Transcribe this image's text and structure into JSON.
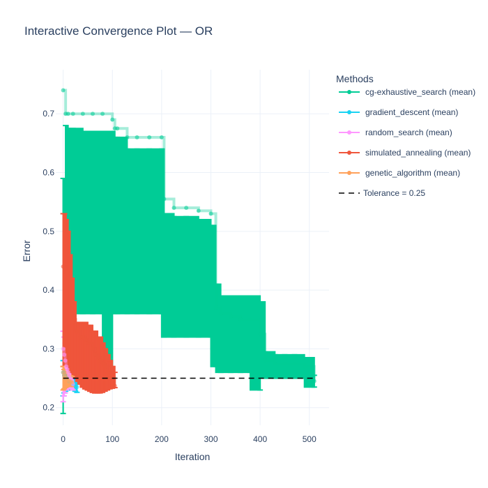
{
  "chart_data": {
    "type": "line",
    "title": "Interactive Convergence Plot — OR",
    "xlabel": "Iteration",
    "ylabel": "Error",
    "xlim": [
      -15,
      540
    ],
    "ylim": [
      0.17,
      0.775
    ],
    "x_ticks": [
      0,
      100,
      200,
      300,
      400,
      500
    ],
    "y_ticks": [
      0.2,
      0.3,
      0.4,
      0.5,
      0.6,
      0.7
    ],
    "grid": true,
    "legend_title": "Methods",
    "legend_position": "right",
    "tolerance": {
      "name": "Tolerance = 0.25",
      "value": 0.25,
      "color": "#000000",
      "dash": true
    },
    "series": [
      {
        "name": "cg-exhaustive_search (mean)",
        "color": "#00cc96",
        "x": [
          0,
          5,
          10,
          20,
          40,
          60,
          80,
          100,
          105,
          110,
          130,
          150,
          175,
          200,
          205,
          225,
          250,
          275,
          300,
          310,
          320,
          340,
          360,
          380,
          400,
          410,
          430,
          450,
          470,
          490,
          510
        ],
        "y": [
          0.74,
          0.7,
          0.7,
          0.7,
          0.7,
          0.7,
          0.7,
          0.69,
          0.675,
          0.675,
          0.66,
          0.66,
          0.66,
          0.66,
          0.555,
          0.54,
          0.54,
          0.535,
          0.53,
          0.37,
          0.36,
          0.355,
          0.35,
          0.35,
          0.325,
          0.28,
          0.275,
          0.275,
          0.275,
          0.27,
          0.245
        ],
        "upper": [
          0.59,
          0.68,
          0.675,
          0.675,
          0.67,
          0.67,
          0.67,
          0.67,
          0.66,
          0.66,
          0.64,
          0.64,
          0.64,
          0.64,
          0.53,
          0.525,
          0.525,
          0.52,
          0.51,
          0.41,
          0.39,
          0.39,
          0.39,
          0.39,
          0.38,
          0.295,
          0.29,
          0.29,
          0.29,
          0.285,
          0.255
        ],
        "lower": [
          0.19,
          0.3,
          0.35,
          0.36,
          0.36,
          0.36,
          0.36,
          0.26,
          0.36,
          0.36,
          0.36,
          0.36,
          0.36,
          0.36,
          0.32,
          0.32,
          0.32,
          0.32,
          0.32,
          0.27,
          0.26,
          0.26,
          0.26,
          0.26,
          0.23,
          0.25,
          0.25,
          0.25,
          0.25,
          0.25,
          0.235
        ]
      },
      {
        "name": "gradient_descent (mean)",
        "color": "#19d3f3",
        "x": [
          0,
          2,
          5,
          8,
          12,
          16,
          20,
          25,
          28
        ],
        "y": [
          0.26,
          0.255,
          0.25,
          0.25,
          0.245,
          0.245,
          0.24,
          0.238,
          0.235
        ],
        "upper": [
          0.28,
          0.27,
          0.265,
          0.262,
          0.26,
          0.258,
          0.255,
          0.25,
          0.248
        ],
        "lower": [
          0.22,
          0.225,
          0.228,
          0.23,
          0.23,
          0.232,
          0.23,
          0.228,
          0.226
        ]
      },
      {
        "name": "random_search (mean)",
        "color": "#ff97ff",
        "x": [
          0,
          2,
          4,
          6,
          8,
          10,
          12,
          14,
          16,
          18,
          20
        ],
        "y": [
          0.3,
          0.29,
          0.28,
          0.27,
          0.265,
          0.26,
          0.255,
          0.25,
          0.248,
          0.245,
          0.24
        ],
        "upper": [
          0.33,
          0.32,
          0.31,
          0.3,
          0.29,
          0.285,
          0.28,
          0.27,
          0.265,
          0.26,
          0.255
        ],
        "lower": [
          0.21,
          0.22,
          0.225,
          0.23,
          0.232,
          0.235,
          0.235,
          0.235,
          0.233,
          0.232,
          0.23
        ]
      },
      {
        "name": "simulated_annealing (mean)",
        "color": "#ef553b",
        "x": [
          0,
          3,
          6,
          10,
          14,
          18,
          22,
          26,
          30,
          35,
          40,
          45,
          50,
          55,
          60,
          65,
          70,
          75,
          80,
          85,
          90,
          95,
          100,
          105
        ],
        "y": [
          0.44,
          0.44,
          0.43,
          0.42,
          0.38,
          0.36,
          0.35,
          0.33,
          0.33,
          0.32,
          0.32,
          0.315,
          0.31,
          0.31,
          0.3,
          0.29,
          0.285,
          0.28,
          0.275,
          0.27,
          0.26,
          0.255,
          0.25,
          0.237
        ],
        "upper": [
          0.53,
          0.53,
          0.52,
          0.5,
          0.46,
          0.42,
          0.38,
          0.345,
          0.345,
          0.345,
          0.345,
          0.345,
          0.34,
          0.34,
          0.33,
          0.33,
          0.32,
          0.32,
          0.31,
          0.3,
          0.29,
          0.28,
          0.27,
          0.26
        ],
        "lower": [
          0.27,
          0.27,
          0.27,
          0.27,
          0.26,
          0.26,
          0.255,
          0.25,
          0.245,
          0.24,
          0.235,
          0.232,
          0.23,
          0.228,
          0.226,
          0.225,
          0.225,
          0.225,
          0.226,
          0.228,
          0.23,
          0.232,
          0.233,
          0.234
        ]
      },
      {
        "name": "genetic_algorithm (mean)",
        "color": "#ffa15a",
        "x": [
          0,
          2,
          4,
          6,
          8,
          10,
          12,
          15,
          18
        ],
        "y": [
          0.26,
          0.255,
          0.25,
          0.25,
          0.248,
          0.246,
          0.245,
          0.244,
          0.243
        ],
        "upper": [
          0.27,
          0.265,
          0.262,
          0.26,
          0.258,
          0.256,
          0.255,
          0.254,
          0.253
        ],
        "lower": [
          0.23,
          0.232,
          0.234,
          0.235,
          0.236,
          0.236,
          0.236,
          0.236,
          0.236
        ]
      }
    ]
  }
}
